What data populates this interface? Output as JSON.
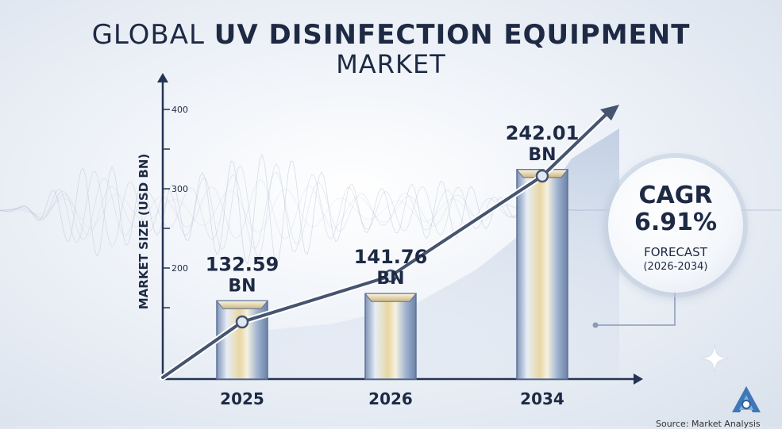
{
  "title": {
    "line1_light": "GLOBAL",
    "line1_bold": "UV DISINFECTION EQUIPMENT",
    "line2": "MARKET"
  },
  "chart_data": {
    "type": "bar",
    "title": "GLOBAL UV DISINFECTION EQUIPMENT MARKET",
    "ylabel": "MARKET SIZE (USD BN)",
    "xlabel": "",
    "ylim": [
      100,
      450
    ],
    "yticks": [
      "200",
      "300",
      "400"
    ],
    "categories": [
      "2025",
      "2026",
      "2034"
    ],
    "values": [
      132.59,
      141.76,
      242.01
    ],
    "value_labels": [
      {
        "value": "132.59",
        "unit": "BN"
      },
      {
        "value": "141.76",
        "unit": "BN"
      },
      {
        "value": "242.01",
        "unit": "BN"
      }
    ],
    "trend_line": true,
    "grid": false,
    "legend": "none"
  },
  "cagr": {
    "label": "CAGR",
    "value": "6.91%",
    "forecast_label": "FORECAST",
    "period": "(2026-2034)"
  },
  "source": "Source: Market Analysis",
  "colors": {
    "text_dark": "#1e2a44",
    "axis": "#243452",
    "bar_light": "#f3f6fb",
    "bar_gold": "#e9d7a2",
    "bar_blue": "#8ea6c9",
    "trend": "#45546f"
  },
  "icons": [
    "brand-logo-icon",
    "sparkle-icon"
  ]
}
